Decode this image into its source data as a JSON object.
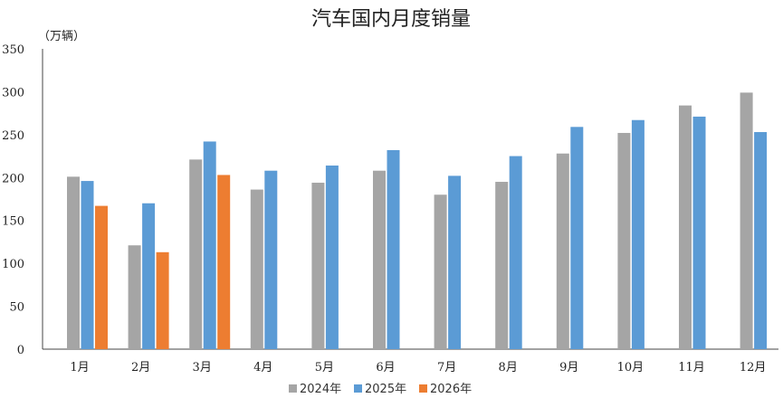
{
  "chart_data": {
    "type": "bar",
    "title": "汽车国内月度销量",
    "unit_label": "（万辆）",
    "xlabel": "",
    "ylabel": "",
    "categories": [
      "1月",
      "2月",
      "3月",
      "4月",
      "5月",
      "6月",
      "7月",
      "8月",
      "9月",
      "10月",
      "11月",
      "12月"
    ],
    "ylim": [
      0,
      350
    ],
    "yticks": [
      "0",
      "50",
      "100",
      "150",
      "200",
      "250",
      "300",
      "350"
    ],
    "grid": false,
    "legend_position": "bottom",
    "series": [
      {
        "name": "2024年",
        "color": "#a5a5a5",
        "values": [
          201,
          121,
          221,
          186,
          194,
          208,
          180,
          195,
          228,
          252,
          284,
          299
        ]
      },
      {
        "name": "2025年",
        "color": "#5b9bd5",
        "values": [
          196,
          170,
          242,
          208,
          214,
          232,
          202,
          225,
          259,
          267,
          271,
          253
        ]
      },
      {
        "name": "2026年",
        "color": "#ed7d31",
        "values": [
          167,
          113,
          203,
          null,
          null,
          null,
          null,
          null,
          null,
          null,
          null,
          null
        ]
      }
    ]
  }
}
